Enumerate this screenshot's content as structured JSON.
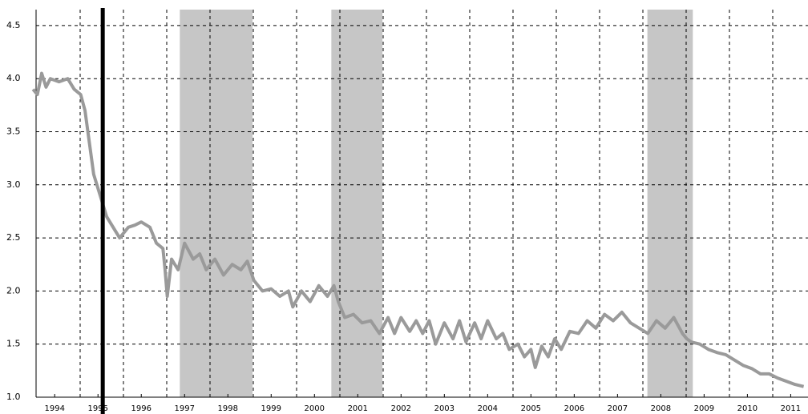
{
  "chart_data": {
    "type": "line",
    "x": [
      1994.0,
      1994.1,
      1994.2,
      1994.3,
      1994.4,
      1994.6,
      1994.8,
      1994.95,
      1995.1,
      1995.2,
      1995.3,
      1995.4,
      1995.55,
      1995.7,
      1995.85,
      1996.0,
      1996.2,
      1996.35,
      1996.5,
      1996.7,
      1996.85,
      1997.0,
      1997.05,
      1997.1,
      1997.2,
      1997.35,
      1997.5,
      1997.7,
      1997.85,
      1998.0,
      1998.2,
      1998.4,
      1998.6,
      1998.8,
      1998.95,
      1999.1,
      1999.3,
      1999.5,
      1999.7,
      1999.9,
      2000.0,
      2000.2,
      2000.4,
      2000.6,
      2000.8,
      2000.95,
      2001.05,
      2001.2,
      2001.4,
      2001.6,
      2001.8,
      2002.0,
      2002.2,
      2002.35,
      2002.5,
      2002.7,
      2002.85,
      2003.0,
      2003.15,
      2003.3,
      2003.5,
      2003.7,
      2003.85,
      2004.0,
      2004.2,
      2004.35,
      2004.5,
      2004.7,
      2004.85,
      2005.0,
      2005.2,
      2005.35,
      2005.5,
      2005.6,
      2005.75,
      2005.9,
      2006.05,
      2006.2,
      2006.4,
      2006.6,
      2006.8,
      2007.0,
      2007.2,
      2007.4,
      2007.6,
      2007.8,
      2008.0,
      2008.2,
      2008.4,
      2008.6,
      2008.8,
      2009.0,
      2009.1,
      2009.2,
      2009.4,
      2009.6,
      2009.8,
      2010.0,
      2010.2,
      2010.4,
      2010.6,
      2010.8,
      2011.0,
      2011.2,
      2011.4,
      2011.6,
      2011.8
    ],
    "series": [
      {
        "color": "#9a9a9a",
        "values": [
          3.9,
          3.85,
          4.05,
          3.92,
          4.0,
          3.97,
          4.0,
          3.9,
          3.85,
          3.7,
          3.4,
          3.1,
          2.9,
          2.7,
          2.6,
          2.5,
          2.6,
          2.62,
          2.65,
          2.6,
          2.45,
          2.4,
          2.2,
          1.95,
          2.3,
          2.2,
          2.45,
          2.3,
          2.35,
          2.2,
          2.3,
          2.15,
          2.25,
          2.2,
          2.28,
          2.1,
          2.0,
          2.02,
          1.95,
          2.0,
          1.85,
          2.0,
          1.9,
          2.05,
          1.95,
          2.05,
          1.9,
          1.75,
          1.78,
          1.7,
          1.72,
          1.6,
          1.75,
          1.6,
          1.75,
          1.62,
          1.72,
          1.6,
          1.72,
          1.5,
          1.7,
          1.55,
          1.72,
          1.52,
          1.7,
          1.55,
          1.72,
          1.55,
          1.6,
          1.45,
          1.5,
          1.38,
          1.45,
          1.28,
          1.48,
          1.38,
          1.55,
          1.45,
          1.62,
          1.6,
          1.72,
          1.65,
          1.78,
          1.72,
          1.8,
          1.7,
          1.65,
          1.6,
          1.72,
          1.65,
          1.75,
          1.6,
          1.55,
          1.52,
          1.5,
          1.45,
          1.42,
          1.4,
          1.35,
          1.3,
          1.27,
          1.22,
          1.22,
          1.18,
          1.15,
          1.12,
          1.1
        ]
      }
    ],
    "xlim": [
      1994.07,
      2011.9
    ],
    "xticks": [
      {
        "value": 1994.5,
        "label": "1994"
      },
      {
        "value": 1995.5,
        "label": "1995"
      },
      {
        "value": 1996.5,
        "label": "1996"
      },
      {
        "value": 1997.5,
        "label": "1997"
      },
      {
        "value": 1998.5,
        "label": "1998"
      },
      {
        "value": 1999.5,
        "label": "1999"
      },
      {
        "value": 2000.5,
        "label": "2000"
      },
      {
        "value": 2001.5,
        "label": "2001"
      },
      {
        "value": 2002.5,
        "label": "2002"
      },
      {
        "value": 2003.5,
        "label": "2003"
      },
      {
        "value": 2004.5,
        "label": "2004"
      },
      {
        "value": 2005.5,
        "label": "2005"
      },
      {
        "value": 2006.5,
        "label": "2006"
      },
      {
        "value": 2007.5,
        "label": "2007"
      },
      {
        "value": 2008.5,
        "label": "2008"
      },
      {
        "value": 2009.5,
        "label": "2009"
      },
      {
        "value": 2010.5,
        "label": "2010"
      },
      {
        "value": 2011.5,
        "label": "2011"
      }
    ],
    "ylim": [
      1.0,
      4.65
    ],
    "yticks": [
      {
        "value": 1.0,
        "label": "1.0"
      },
      1.5,
      {
        "value": 2.0,
        "label": "2.0"
      },
      2.5,
      {
        "value": 3.0,
        "label": "3.0"
      },
      3.5,
      {
        "value": 4.0,
        "label": "4.0"
      },
      4.5
    ],
    "grid": true,
    "shaded_regions": [
      [
        1997.39,
        1999.07
      ],
      [
        2000.89,
        2002.07
      ],
      [
        2008.19,
        2009.24
      ]
    ],
    "shade_color": "#c6c6c6",
    "vline": 1995.61
  }
}
